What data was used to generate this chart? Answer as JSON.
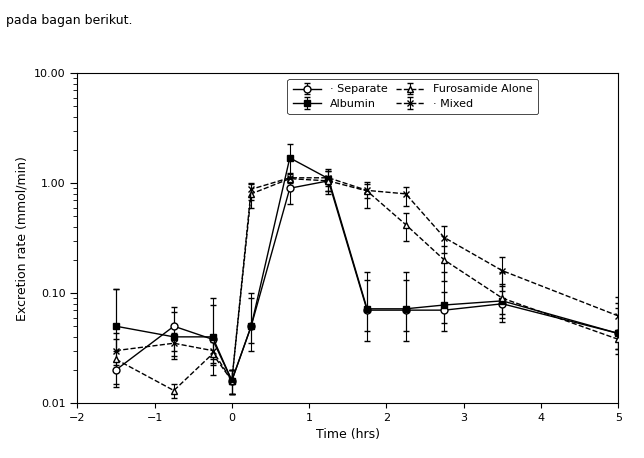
{
  "header_text": "pada bagan berikut.",
  "xlabel": "Time (hrs)",
  "ylabel": "Excretion rate (mmol/min)",
  "xlim": [
    -2,
    5
  ],
  "ylim_log": [
    0.01,
    10.0
  ],
  "xticks": [
    -2,
    -1,
    0,
    1,
    2,
    3,
    4,
    5
  ],
  "separate": {
    "label": "· Separate",
    "linestyle": "-",
    "marker": "o",
    "markerfacecolor": "white",
    "color": "black",
    "x": [
      -1.5,
      -0.75,
      -0.25,
      0.0,
      0.25,
      0.75,
      1.25,
      1.75,
      2.25,
      2.75,
      3.5,
      5.0
    ],
    "y": [
      0.02,
      0.05,
      0.038,
      0.016,
      0.05,
      0.9,
      1.05,
      0.07,
      0.07,
      0.07,
      0.08,
      0.043
    ],
    "yerr_lo": [
      0.006,
      0.02,
      0.015,
      0.004,
      0.015,
      0.25,
      0.25,
      0.025,
      0.025,
      0.025,
      0.025,
      0.012
    ],
    "yerr_hi": [
      0.09,
      0.025,
      0.04,
      0.004,
      0.04,
      0.25,
      0.25,
      0.085,
      0.085,
      0.085,
      0.04,
      0.03
    ]
  },
  "albumin": {
    "label": "Albumin",
    "linestyle": "-",
    "marker": "s",
    "markerfacecolor": "black",
    "color": "black",
    "x": [
      -1.5,
      -0.75,
      -0.25,
      0.0,
      0.25,
      0.75,
      1.25,
      1.75,
      2.25,
      2.75,
      3.5,
      5.0
    ],
    "y": [
      0.05,
      0.04,
      0.04,
      0.016,
      0.05,
      1.7,
      1.1,
      0.072,
      0.072,
      0.078,
      0.085,
      0.043
    ],
    "yerr_lo": [
      0.02,
      0.015,
      0.015,
      0.004,
      0.02,
      0.55,
      0.25,
      0.035,
      0.035,
      0.025,
      0.025,
      0.012
    ],
    "yerr_hi": [
      0.06,
      0.028,
      0.05,
      0.004,
      0.05,
      0.55,
      0.25,
      0.06,
      0.06,
      0.025,
      0.07,
      0.05
    ]
  },
  "furosamide": {
    "label": "Furosamide Alone",
    "linestyle": "--",
    "marker": "^",
    "markerfacecolor": "white",
    "color": "black",
    "x": [
      -1.5,
      -0.75,
      -0.25,
      0.0,
      0.25,
      0.75,
      1.25,
      1.75,
      2.25,
      2.75,
      3.5,
      5.0
    ],
    "y": [
      0.025,
      0.013,
      0.028,
      0.016,
      0.8,
      1.1,
      1.05,
      0.85,
      0.42,
      0.2,
      0.09,
      0.038
    ],
    "yerr_lo": [
      0.01,
      0.002,
      0.01,
      0.004,
      0.2,
      0.15,
      0.2,
      0.25,
      0.12,
      0.07,
      0.025,
      0.01
    ],
    "yerr_hi": [
      0.018,
      0.002,
      0.008,
      0.004,
      0.18,
      0.12,
      0.12,
      0.18,
      0.12,
      0.07,
      0.025,
      0.008
    ]
  },
  "mixed": {
    "label": "· Mixed",
    "linestyle": "--",
    "marker": "x",
    "markerfacecolor": "black",
    "color": "black",
    "x": [
      -1.5,
      -0.75,
      -0.25,
      0.0,
      0.25,
      0.75,
      1.25,
      1.75,
      2.25,
      2.75,
      3.5,
      5.0
    ],
    "y": [
      0.03,
      0.035,
      0.03,
      0.016,
      0.88,
      1.12,
      1.12,
      0.86,
      0.8,
      0.32,
      0.16,
      0.062
    ],
    "yerr_lo": [
      0.008,
      0.008,
      0.008,
      0.004,
      0.18,
      0.12,
      0.18,
      0.12,
      0.18,
      0.09,
      0.055,
      0.02
    ],
    "yerr_hi": [
      0.008,
      0.008,
      0.008,
      0.004,
      0.13,
      0.12,
      0.18,
      0.12,
      0.13,
      0.09,
      0.055,
      0.02
    ]
  },
  "legend_fontsize": 8,
  "axis_fontsize": 9,
  "tick_fontsize": 8
}
